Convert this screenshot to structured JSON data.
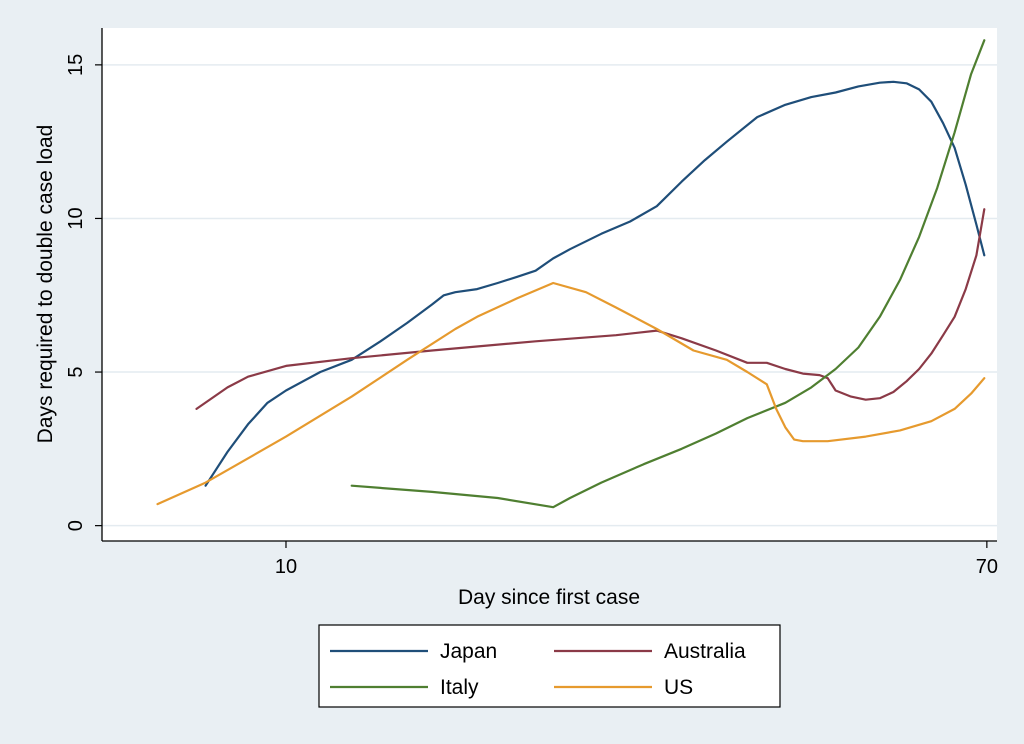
{
  "chart_data": {
    "type": "line",
    "xlabel": "Day since first case",
    "ylabel": "Days required to double case load",
    "x_axis": {
      "scale": "log",
      "range": [
        6,
        72
      ],
      "ticks": [
        10,
        70
      ]
    },
    "y_axis": {
      "range": [
        -0.5,
        16.2
      ],
      "ticks": [
        0,
        5,
        10,
        15
      ],
      "grid": true
    },
    "legend": {
      "position": "bottom-center",
      "columns": 2
    },
    "series": [
      {
        "name": "Japan",
        "color": "#1f4e79",
        "points": [
          [
            8,
            1.3
          ],
          [
            8.5,
            2.4
          ],
          [
            9,
            3.3
          ],
          [
            9.5,
            4.0
          ],
          [
            10,
            4.4
          ],
          [
            11,
            5.0
          ],
          [
            12,
            5.4
          ],
          [
            13,
            6.0
          ],
          [
            14,
            6.6
          ],
          [
            15,
            7.2
          ],
          [
            15.5,
            7.5
          ],
          [
            16,
            7.6
          ],
          [
            17,
            7.7
          ],
          [
            18,
            7.9
          ],
          [
            19,
            8.1
          ],
          [
            20,
            8.3
          ],
          [
            21,
            8.7
          ],
          [
            22,
            9.0
          ],
          [
            24,
            9.5
          ],
          [
            26,
            9.9
          ],
          [
            28,
            10.4
          ],
          [
            30,
            11.2
          ],
          [
            32,
            11.9
          ],
          [
            34,
            12.5
          ],
          [
            37,
            13.3
          ],
          [
            40,
            13.7
          ],
          [
            43,
            13.95
          ],
          [
            46,
            14.1
          ],
          [
            49,
            14.3
          ],
          [
            52,
            14.42
          ],
          [
            54,
            14.45
          ],
          [
            56,
            14.4
          ],
          [
            58,
            14.2
          ],
          [
            60,
            13.8
          ],
          [
            62,
            13.1
          ],
          [
            64,
            12.3
          ],
          [
            66,
            11.1
          ],
          [
            68,
            9.8
          ],
          [
            69.5,
            8.8
          ]
        ]
      },
      {
        "name": "Australia",
        "color": "#8b3a47",
        "points": [
          [
            7.8,
            3.8
          ],
          [
            8.5,
            4.5
          ],
          [
            9,
            4.85
          ],
          [
            10,
            5.2
          ],
          [
            12,
            5.45
          ],
          [
            15,
            5.7
          ],
          [
            20,
            6.0
          ],
          [
            25,
            6.2
          ],
          [
            28,
            6.35
          ],
          [
            30,
            6.1
          ],
          [
            33,
            5.7
          ],
          [
            36,
            5.3
          ],
          [
            38,
            5.3
          ],
          [
            40,
            5.1
          ],
          [
            42,
            4.95
          ],
          [
            44,
            4.9
          ],
          [
            45,
            4.8
          ],
          [
            46,
            4.4
          ],
          [
            48,
            4.2
          ],
          [
            50,
            4.1
          ],
          [
            52,
            4.15
          ],
          [
            54,
            4.35
          ],
          [
            56,
            4.7
          ],
          [
            58,
            5.1
          ],
          [
            60,
            5.6
          ],
          [
            62,
            6.2
          ],
          [
            64,
            6.8
          ],
          [
            66,
            7.7
          ],
          [
            68,
            8.8
          ],
          [
            69.5,
            10.3
          ]
        ]
      },
      {
        "name": "Italy",
        "color": "#4f7f31",
        "points": [
          [
            12,
            1.3
          ],
          [
            15,
            1.1
          ],
          [
            18,
            0.9
          ],
          [
            21,
            0.6
          ],
          [
            22,
            0.9
          ],
          [
            24,
            1.4
          ],
          [
            27,
            2.0
          ],
          [
            30,
            2.5
          ],
          [
            33,
            3.0
          ],
          [
            36,
            3.5
          ],
          [
            40,
            4.0
          ],
          [
            43,
            4.5
          ],
          [
            46,
            5.1
          ],
          [
            49,
            5.8
          ],
          [
            52,
            6.8
          ],
          [
            55,
            8.0
          ],
          [
            58,
            9.4
          ],
          [
            61,
            11.0
          ],
          [
            64,
            12.8
          ],
          [
            67,
            14.7
          ],
          [
            69.5,
            15.8
          ]
        ]
      },
      {
        "name": "US",
        "color": "#e69a2e",
        "points": [
          [
            7,
            0.7
          ],
          [
            8,
            1.4
          ],
          [
            10,
            2.9
          ],
          [
            12,
            4.2
          ],
          [
            14,
            5.4
          ],
          [
            16,
            6.4
          ],
          [
            17,
            6.8
          ],
          [
            19,
            7.4
          ],
          [
            21,
            7.9
          ],
          [
            23,
            7.6
          ],
          [
            25,
            7.1
          ],
          [
            28,
            6.4
          ],
          [
            31,
            5.7
          ],
          [
            34,
            5.4
          ],
          [
            36,
            5.0
          ],
          [
            38,
            4.6
          ],
          [
            39,
            3.8
          ],
          [
            40,
            3.2
          ],
          [
            41,
            2.8
          ],
          [
            42,
            2.75
          ],
          [
            45,
            2.75
          ],
          [
            50,
            2.9
          ],
          [
            55,
            3.1
          ],
          [
            60,
            3.4
          ],
          [
            64,
            3.8
          ],
          [
            67,
            4.3
          ],
          [
            69.5,
            4.8
          ]
        ]
      }
    ]
  }
}
